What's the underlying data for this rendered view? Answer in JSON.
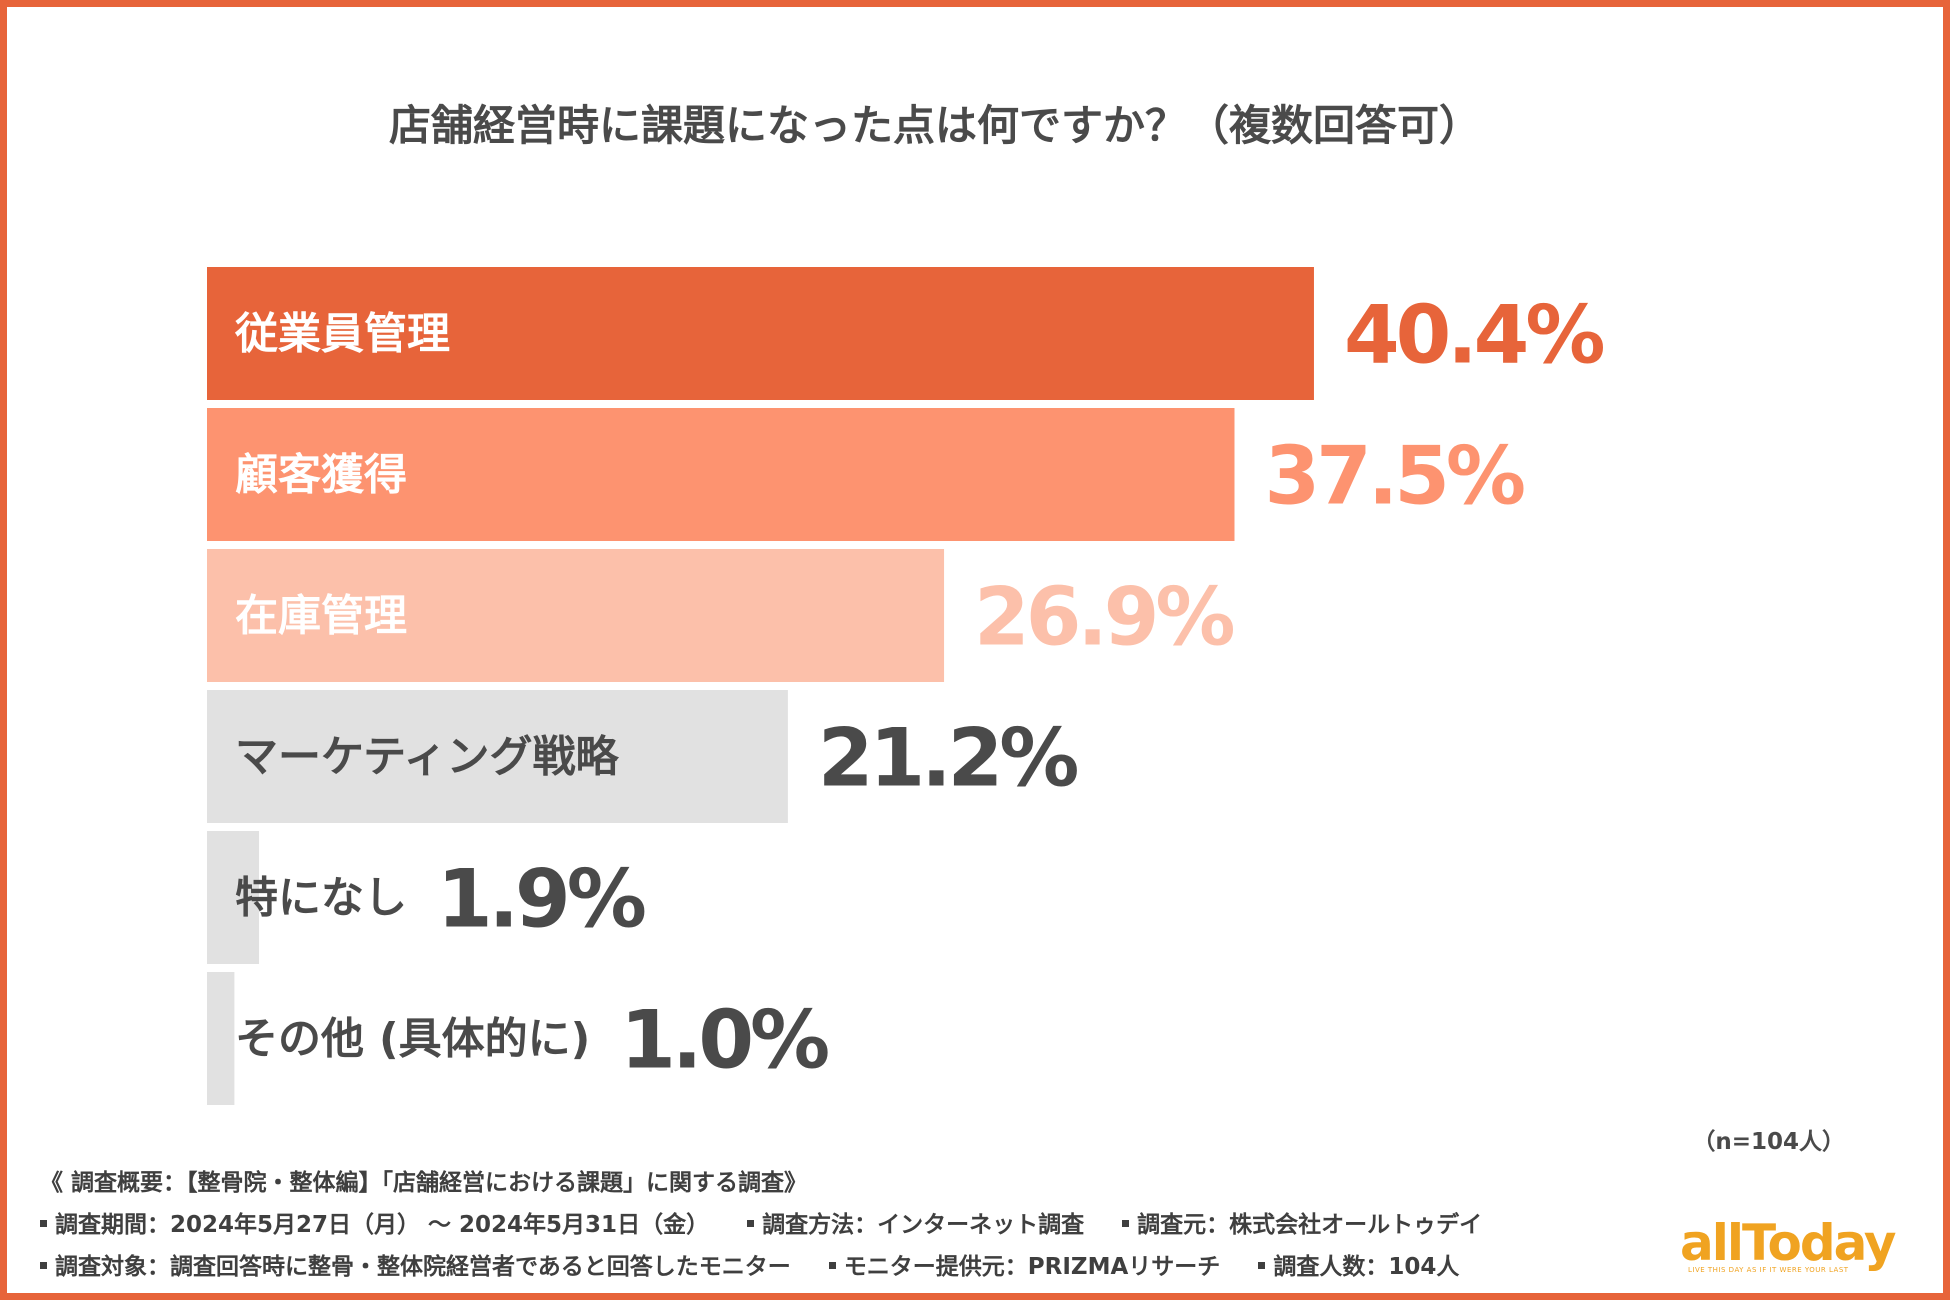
{
  "title": "店舗経営時に課題になった点は何ですか？（複数回答可）",
  "sample_note": "（n=104人）",
  "colors": {
    "frame": "#e7643a",
    "bar_colors": [
      "#e7643a",
      "#fd9370",
      "#fcc0aa",
      "#e1e1e1",
      "#e1e1e1",
      "#e1e1e1"
    ],
    "value_colors": [
      "#e7643a",
      "#fd9370",
      "#fcc0aa",
      "#4a4a4a",
      "#4a4a4a",
      "#4a4a4a"
    ],
    "label_colors": [
      "#ffffff",
      "#ffffff",
      "#ffffff",
      "#4a4a4a",
      "#4a4a4a",
      "#4a4a4a"
    ],
    "logo": "#f0a321"
  },
  "chart_data": {
    "type": "bar",
    "orientation": "horizontal",
    "categories": [
      "従業員管理",
      "顧客獲得",
      "在庫管理",
      "マーケティング戦略",
      "特になし",
      "その他 (具体的に)"
    ],
    "values": [
      40.4,
      37.5,
      26.9,
      21.2,
      1.9,
      1.0
    ],
    "value_labels": [
      "40.4%",
      "37.5%",
      "26.9%",
      "21.2%",
      "1.9%",
      "1.0%"
    ],
    "unit": "%",
    "title": "店舗経営時に課題になった点は何ですか？（複数回答可）",
    "xlim": [
      0,
      50
    ],
    "grid": false,
    "legend": "none"
  },
  "footer": {
    "survey_title": "《 調査概要：【整骨院・整体編】「店舗経営における課題」に関する調査》",
    "period": "調査期間：2024年5月27日（月） 〜 2024年5月31日（金）",
    "method": "調査方法：インターネット調査",
    "source": "調査元：株式会社オールトゥデイ",
    "target": "調査対象：調査回答時に整骨・整体院経営者であると回答したモニター",
    "provider": "モニター提供元：PRIZMAリサーチ",
    "count": "調査人数：104人"
  },
  "logo": {
    "name": "allToday",
    "tagline": "LIVE THIS DAY AS IF IT WERE YOUR LAST"
  }
}
